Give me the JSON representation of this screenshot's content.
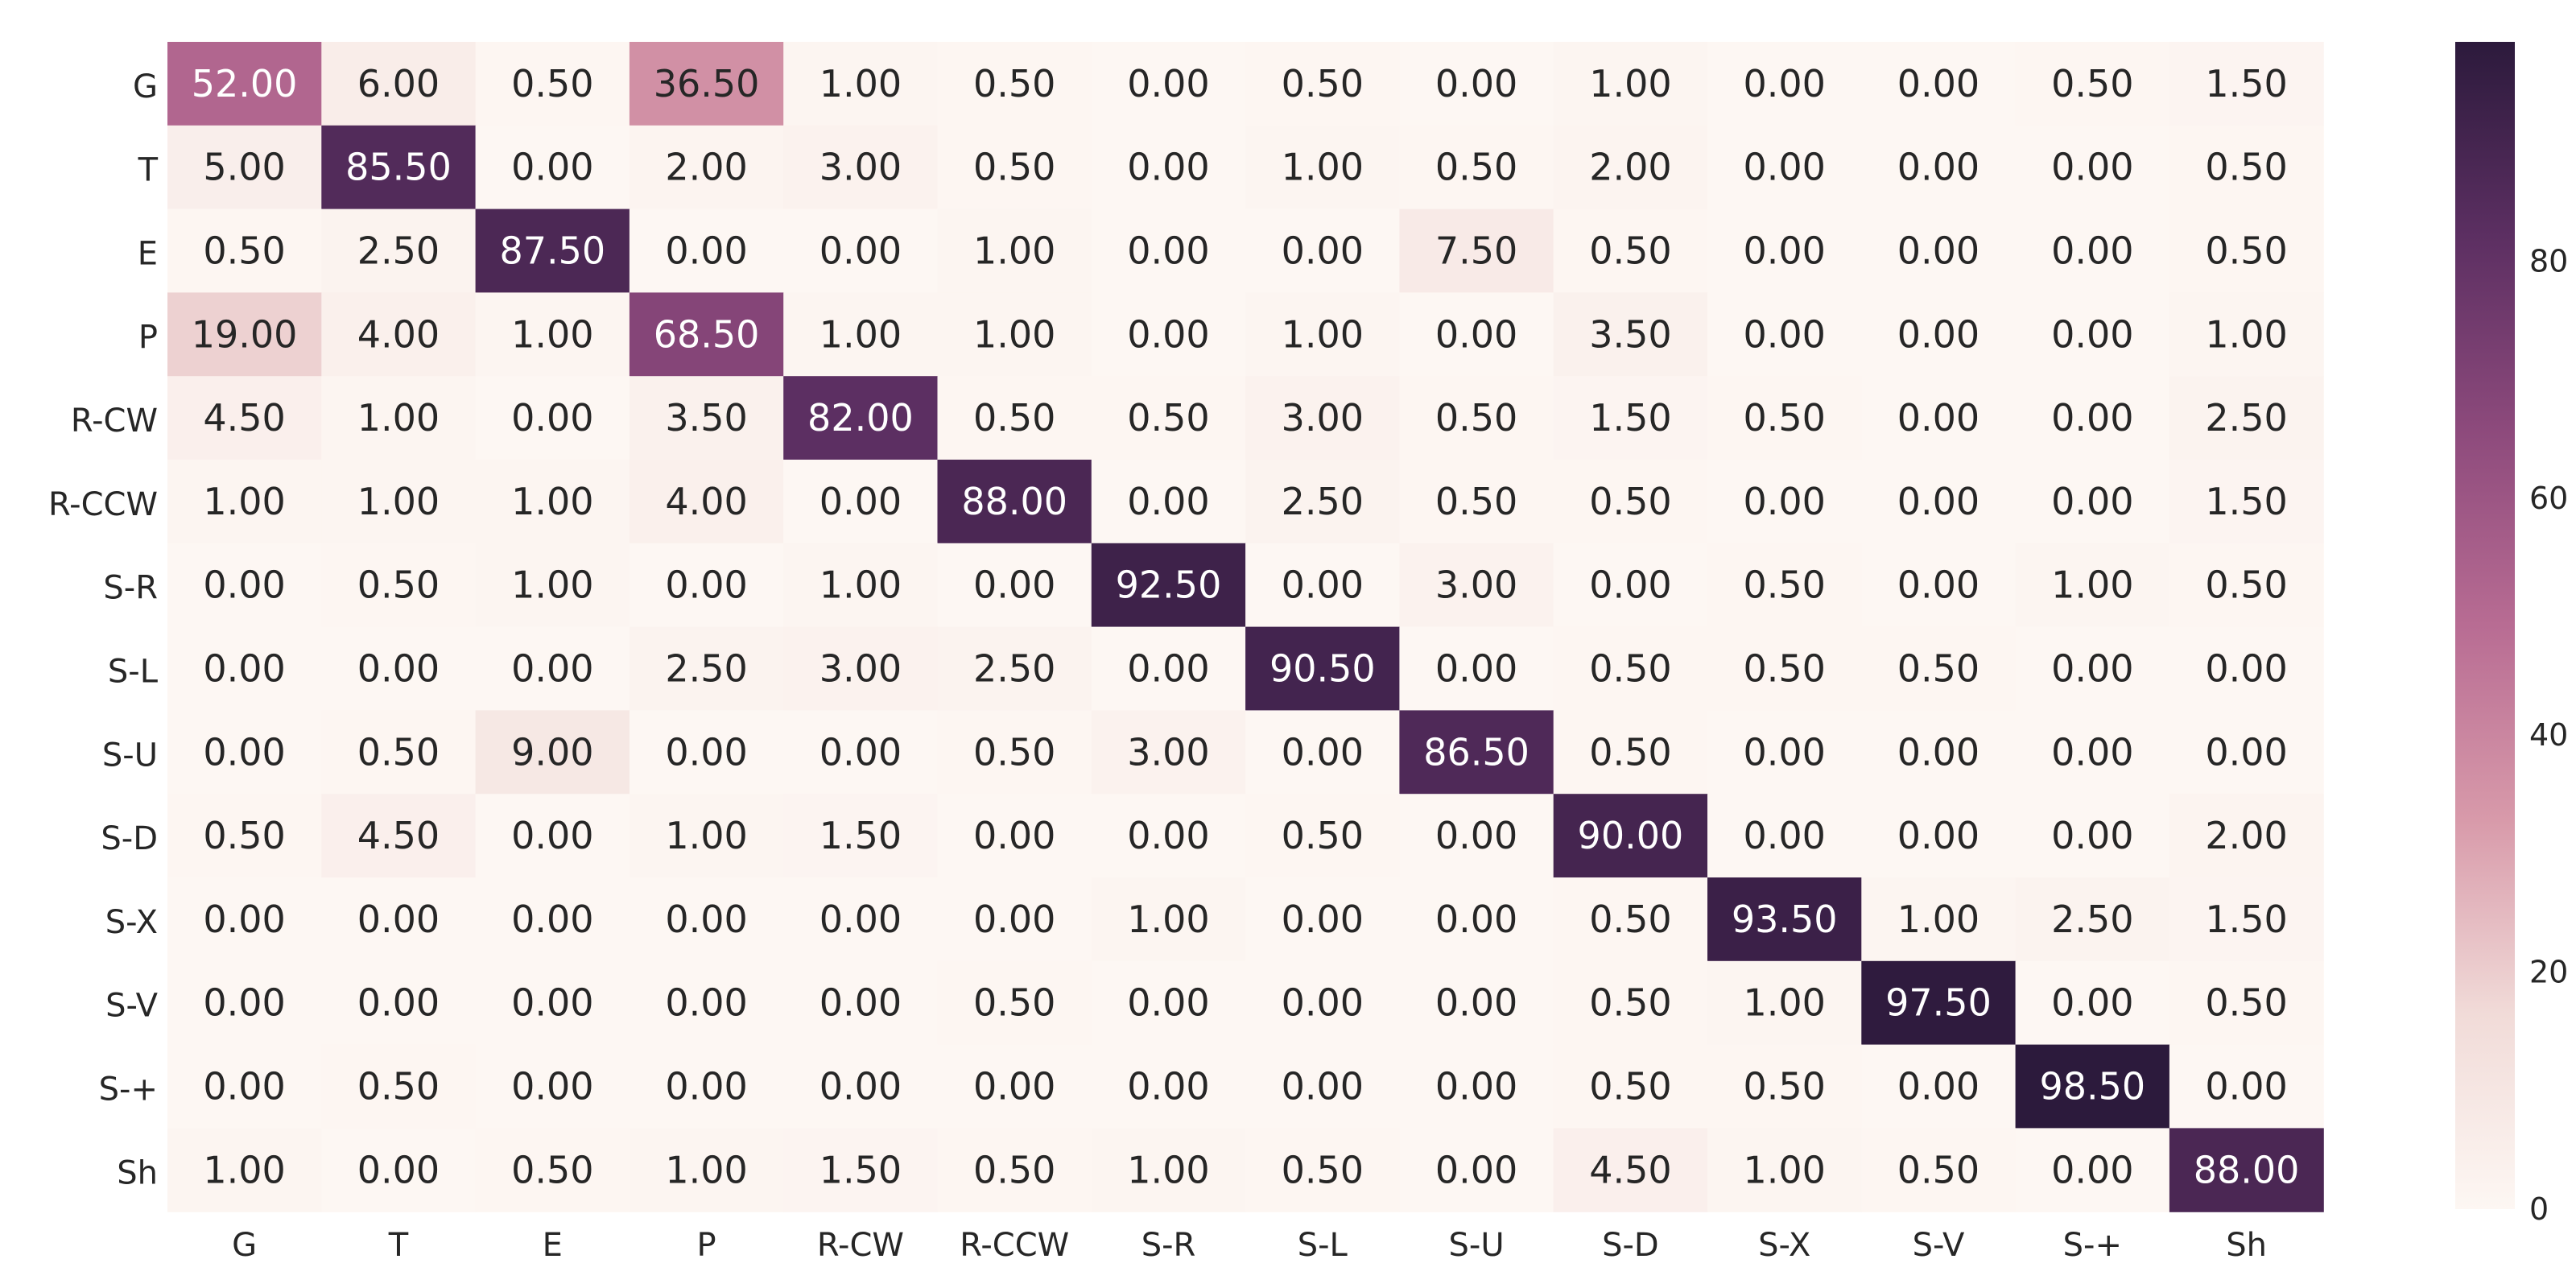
{
  "chart_data": {
    "type": "heatmap",
    "title": "",
    "xlabel": "",
    "ylabel": "",
    "x_categories": [
      "G",
      "T",
      "E",
      "P",
      "R-CW",
      "R-CCW",
      "S-R",
      "S-L",
      "S-U",
      "S-D",
      "S-X",
      "S-V",
      "S-+",
      "Sh"
    ],
    "y_categories": [
      "G",
      "T",
      "E",
      "P",
      "R-CW",
      "R-CCW",
      "S-R",
      "S-L",
      "S-U",
      "S-D",
      "S-X",
      "S-V",
      "S-+",
      "Sh"
    ],
    "values": [
      [
        52.0,
        6.0,
        0.5,
        36.5,
        1.0,
        0.5,
        0.0,
        0.5,
        0.0,
        1.0,
        0.0,
        0.0,
        0.5,
        1.5
      ],
      [
        5.0,
        85.5,
        0.0,
        2.0,
        3.0,
        0.5,
        0.0,
        1.0,
        0.5,
        2.0,
        0.0,
        0.0,
        0.0,
        0.5
      ],
      [
        0.5,
        2.5,
        87.5,
        0.0,
        0.0,
        1.0,
        0.0,
        0.0,
        7.5,
        0.5,
        0.0,
        0.0,
        0.0,
        0.5
      ],
      [
        19.0,
        4.0,
        1.0,
        68.5,
        1.0,
        1.0,
        0.0,
        1.0,
        0.0,
        3.5,
        0.0,
        0.0,
        0.0,
        1.0
      ],
      [
        4.5,
        1.0,
        0.0,
        3.5,
        82.0,
        0.5,
        0.5,
        3.0,
        0.5,
        1.5,
        0.5,
        0.0,
        0.0,
        2.5
      ],
      [
        1.0,
        1.0,
        1.0,
        4.0,
        0.0,
        88.0,
        0.0,
        2.5,
        0.5,
        0.5,
        0.0,
        0.0,
        0.0,
        1.5
      ],
      [
        0.0,
        0.5,
        1.0,
        0.0,
        1.0,
        0.0,
        92.5,
        0.0,
        3.0,
        0.0,
        0.5,
        0.0,
        1.0,
        0.5
      ],
      [
        0.0,
        0.0,
        0.0,
        2.5,
        3.0,
        2.5,
        0.0,
        90.5,
        0.0,
        0.5,
        0.5,
        0.5,
        0.0,
        0.0
      ],
      [
        0.0,
        0.5,
        9.0,
        0.0,
        0.0,
        0.5,
        3.0,
        0.0,
        86.5,
        0.5,
        0.0,
        0.0,
        0.0,
        0.0
      ],
      [
        0.5,
        4.5,
        0.0,
        1.0,
        1.5,
        0.0,
        0.0,
        0.5,
        0.0,
        90.0,
        0.0,
        0.0,
        0.0,
        2.0
      ],
      [
        0.0,
        0.0,
        0.0,
        0.0,
        0.0,
        0.0,
        1.0,
        0.0,
        0.0,
        0.5,
        93.5,
        1.0,
        2.5,
        1.5
      ],
      [
        0.0,
        0.0,
        0.0,
        0.0,
        0.0,
        0.5,
        0.0,
        0.0,
        0.0,
        0.5,
        1.0,
        97.5,
        0.0,
        0.5
      ],
      [
        0.0,
        0.5,
        0.0,
        0.0,
        0.0,
        0.0,
        0.0,
        0.0,
        0.0,
        0.5,
        0.5,
        0.0,
        98.5,
        0.0
      ],
      [
        1.0,
        0.0,
        0.5,
        1.0,
        1.5,
        0.5,
        1.0,
        0.5,
        0.0,
        4.5,
        1.0,
        0.5,
        0.0,
        88.0
      ]
    ],
    "value_format": "0.00",
    "vmin": 0,
    "vmax": 98.5,
    "colorbar": {
      "ticks": [
        0,
        20,
        40,
        60,
        80
      ],
      "placement": "right"
    },
    "colormap": [
      "#fdf7f3",
      "#f1dbd8",
      "#d89aaa",
      "#b86c93",
      "#8d4a7c",
      "#5c2f62",
      "#2c1a3c"
    ],
    "text_color_light": "#ffffff",
    "text_color_dark": "#262626",
    "grid": false
  }
}
